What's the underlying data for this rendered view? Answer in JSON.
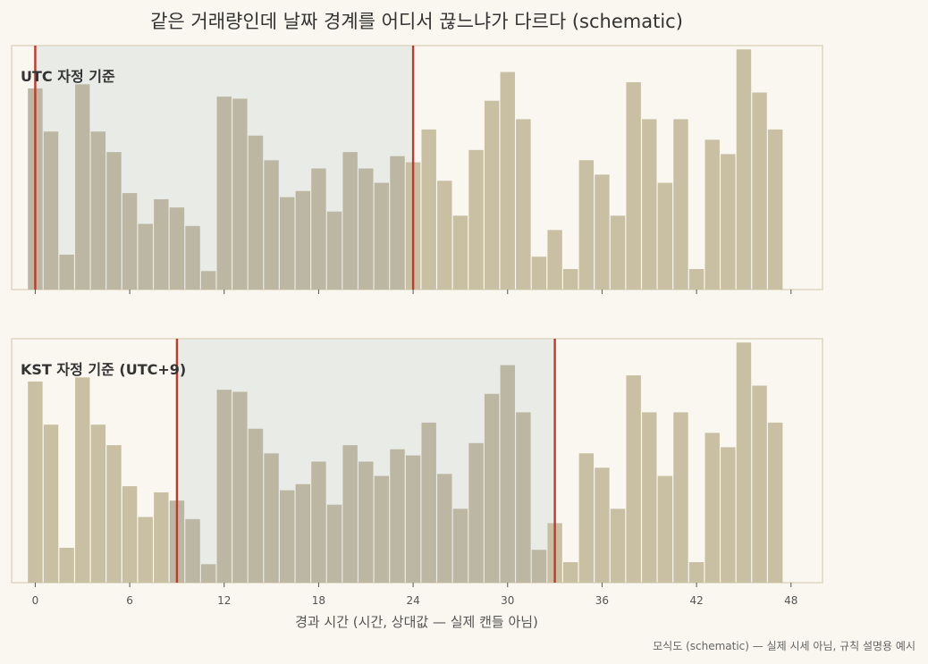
{
  "title": "같은 거래량인데 날짜 경계를 어디서 끊느냐가 다르다 (schematic)",
  "footer_note": "모식도 (schematic) — 실제 시세 아님, 규칙 설명용 예시",
  "colors": {
    "background": "#faf7f0",
    "bar": "#c9bfa3",
    "bar_in_window": "#bcb7a3",
    "window_fill": "#e9ebe7",
    "boundary": "#c0392b",
    "frame": "#d8cdb5"
  },
  "chart_data": [
    {
      "type": "bar",
      "panel_label": "UTC 자정 기준",
      "xlabel": "",
      "ylabel": "",
      "xlim": [
        -1.5,
        50
      ],
      "xticks": [
        0,
        6,
        12,
        18,
        24,
        30,
        36,
        42,
        48
      ],
      "x": [
        0,
        1,
        2,
        3,
        4,
        5,
        6,
        7,
        8,
        9,
        10,
        11,
        12,
        13,
        14,
        15,
        16,
        17,
        18,
        19,
        20,
        21,
        22,
        23,
        24,
        25,
        26,
        27,
        28,
        29,
        30,
        31,
        32,
        33,
        34,
        35,
        36,
        37,
        38,
        39,
        40,
        41,
        42,
        43,
        44,
        45,
        46,
        47
      ],
      "values": [
        98,
        77,
        17,
        100,
        77,
        67,
        47,
        32,
        44,
        40,
        31,
        9,
        94,
        93,
        75,
        63,
        45,
        48,
        59,
        38,
        67,
        59,
        52,
        65,
        62,
        78,
        53,
        36,
        68,
        92,
        106,
        83,
        16,
        29,
        10,
        63,
        56,
        36,
        101,
        83,
        52,
        83,
        10,
        73,
        66,
        117,
        96,
        78
      ],
      "window": {
        "start": 0,
        "end": 24
      },
      "boundaries": [
        0,
        24
      ],
      "ylim": [
        0,
        118
      ]
    },
    {
      "type": "bar",
      "panel_label": "KST 자정 기준 (UTC+9)",
      "xlabel": "경과 시간 (시간, 상대값 — 실제 캔들 아님)",
      "ylabel": "",
      "xlim": [
        -1.5,
        50
      ],
      "xticks": [
        0,
        6,
        12,
        18,
        24,
        30,
        36,
        42,
        48
      ],
      "x": [
        0,
        1,
        2,
        3,
        4,
        5,
        6,
        7,
        8,
        9,
        10,
        11,
        12,
        13,
        14,
        15,
        16,
        17,
        18,
        19,
        20,
        21,
        22,
        23,
        24,
        25,
        26,
        27,
        28,
        29,
        30,
        31,
        32,
        33,
        34,
        35,
        36,
        37,
        38,
        39,
        40,
        41,
        42,
        43,
        44,
        45,
        46,
        47
      ],
      "values": [
        98,
        77,
        17,
        100,
        77,
        67,
        47,
        32,
        44,
        40,
        31,
        9,
        94,
        93,
        75,
        63,
        45,
        48,
        59,
        38,
        67,
        59,
        52,
        65,
        62,
        78,
        53,
        36,
        68,
        92,
        106,
        83,
        16,
        29,
        10,
        63,
        56,
        36,
        101,
        83,
        52,
        83,
        10,
        73,
        66,
        117,
        96,
        78
      ],
      "window": {
        "start": 9,
        "end": 33
      },
      "boundaries": [
        9,
        33
      ],
      "ylim": [
        0,
        118
      ]
    }
  ]
}
